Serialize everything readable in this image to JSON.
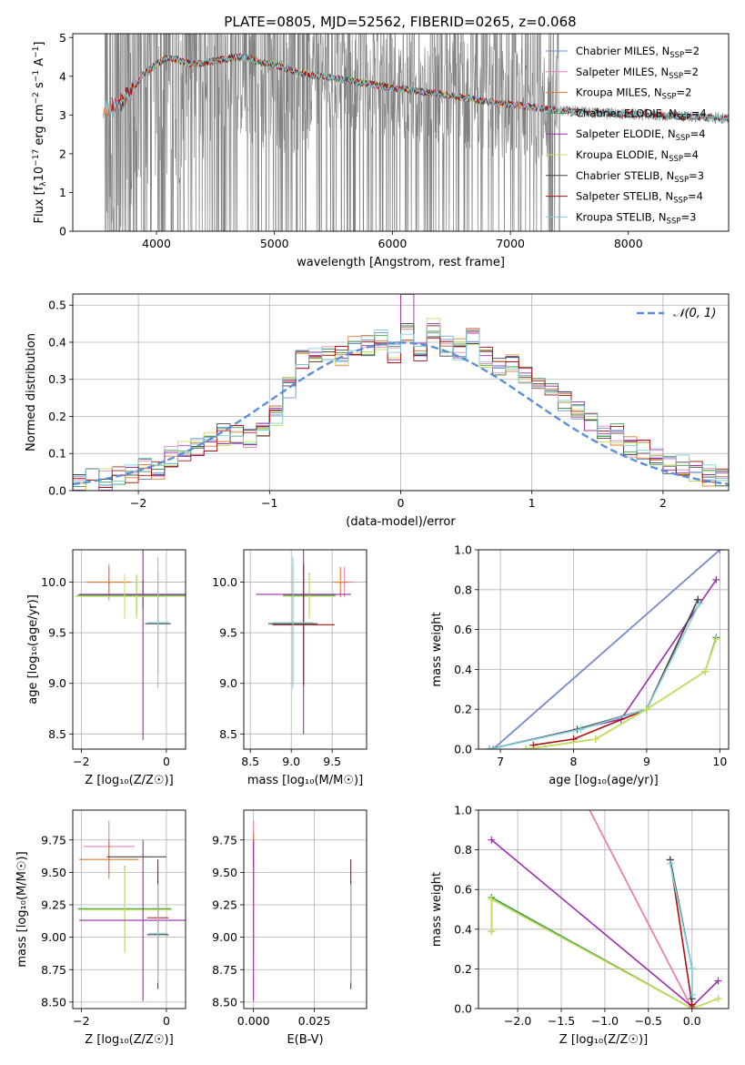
{
  "figure_title": "PLATE=0805, MJD=52562, FIBERID=0265, z=0.068",
  "colors": {
    "chabrier_miles": "#6a8fd6",
    "salpeter_miles": "#e97fb8",
    "kroupa_miles": "#e07a2e",
    "chabrier_elodie": "#3e9b4a",
    "salpeter_elodie": "#9b2fae",
    "kroupa_elodie": "#c8e05a",
    "chabrier_stelib": "#444444",
    "salpeter_stelib": "#b01010",
    "kroupa_stelib": "#7fd0d8",
    "data_gray": "#808080",
    "gaussian": "#5b8fd9"
  },
  "chart_data": [
    {
      "id": "spectrum",
      "type": "line",
      "title": "PLATE=0805, MJD=52562, FIBERID=0265, z=0.068",
      "xlabel": "wavelength [Angstrom, rest frame]",
      "ylabel": "Flux [f_λ 10^-17 erg cm^-2 s^-1 A^-1]",
      "xlim": [
        3290,
        8850
      ],
      "ylim": [
        0,
        5.1
      ],
      "xticks": [
        4000,
        5000,
        6000,
        7000,
        8000
      ],
      "yticks": [
        0,
        1,
        2,
        3,
        4,
        5
      ],
      "legend_position": "right",
      "legend": [
        {
          "label": "Chabrier MILES, N",
          "sub": "SSP",
          "suffix": "=2",
          "color_key": "chabrier_miles"
        },
        {
          "label": "Salpeter MILES, N",
          "sub": "SSP",
          "suffix": "=2",
          "color_key": "salpeter_miles"
        },
        {
          "label": "Kroupa MILES, N",
          "sub": "SSP",
          "suffix": "=2",
          "color_key": "kroupa_miles"
        },
        {
          "label": "Chabrier ELODIE, N",
          "sub": "SSP",
          "suffix": "=4",
          "color_key": "chabrier_elodie"
        },
        {
          "label": "Salpeter ELODIE, N",
          "sub": "SSP",
          "suffix": "=4",
          "color_key": "salpeter_elodie"
        },
        {
          "label": "Kroupa ELODIE, N",
          "sub": "SSP",
          "suffix": "=4",
          "color_key": "kroupa_elodie"
        },
        {
          "label": "Chabrier STELIB, N",
          "sub": "SSP",
          "suffix": "=3",
          "color_key": "chabrier_stelib"
        },
        {
          "label": "Salpeter STELIB, N",
          "sub": "SSP",
          "suffix": "=4",
          "color_key": "salpeter_stelib"
        },
        {
          "label": "Kroupa STELIB, N",
          "sub": "SSP",
          "suffix": "=3",
          "color_key": "kroupa_stelib"
        }
      ],
      "model_continuum": {
        "x": [
          3550,
          3620,
          3700,
          3800,
          3900,
          4000,
          4100,
          4200,
          4300,
          4400,
          4500,
          4600,
          4700,
          4800,
          4900,
          5000,
          5100,
          5200,
          5400,
          5600,
          5800,
          6000,
          6200,
          6400,
          6600,
          6800,
          7000,
          7200,
          7400,
          7600,
          7800,
          8000,
          8200,
          8400,
          8600,
          8800
        ],
        "y": [
          3.1,
          3.2,
          3.3,
          3.7,
          4.1,
          4.3,
          4.5,
          4.4,
          4.3,
          4.35,
          4.4,
          4.45,
          4.5,
          4.45,
          4.35,
          4.3,
          4.2,
          4.1,
          4.0,
          3.9,
          3.8,
          3.7,
          3.62,
          3.55,
          3.45,
          3.35,
          3.28,
          3.2,
          3.12,
          3.08,
          3.05,
          3.02,
          3.0,
          2.97,
          2.95,
          2.92
        ]
      },
      "data_noisy_range": [
        3550,
        7420
      ]
    },
    {
      "id": "residuals",
      "type": "step",
      "xlabel": "(data-model)/error",
      "ylabel": "Normed distribution",
      "xlim": [
        -2.5,
        2.5
      ],
      "ylim": [
        0,
        0.53
      ],
      "xticks": [
        -2,
        -1,
        0,
        1,
        2
      ],
      "yticks": [
        0.0,
        0.1,
        0.2,
        0.3,
        0.4,
        0.5
      ],
      "gaussian_label": "𝒩(0, 1)",
      "bin_edges": [
        -2.5,
        -2.4,
        -2.3,
        -2.2,
        -2.1,
        -2.0,
        -1.9,
        -1.8,
        -1.7,
        -1.6,
        -1.5,
        -1.4,
        -1.3,
        -1.2,
        -1.1,
        -1.0,
        -0.9,
        -0.8,
        -0.7,
        -0.6,
        -0.5,
        -0.4,
        -0.3,
        -0.2,
        -0.1,
        0.0,
        0.1,
        0.2,
        0.3,
        0.4,
        0.5,
        0.6,
        0.7,
        0.8,
        0.9,
        1.0,
        1.1,
        1.2,
        1.3,
        1.4,
        1.5,
        1.6,
        1.7,
        1.8,
        1.9,
        2.0,
        2.1,
        2.2,
        2.3,
        2.4,
        2.5
      ],
      "histogram": [
        0.02,
        0.03,
        0.03,
        0.04,
        0.05,
        0.06,
        0.06,
        0.09,
        0.11,
        0.11,
        0.13,
        0.15,
        0.15,
        0.14,
        0.17,
        0.2,
        0.28,
        0.35,
        0.37,
        0.37,
        0.36,
        0.39,
        0.39,
        0.41,
        0.37,
        0.43,
        0.37,
        0.44,
        0.39,
        0.38,
        0.42,
        0.36,
        0.34,
        0.34,
        0.31,
        0.28,
        0.28,
        0.24,
        0.22,
        0.18,
        0.15,
        0.15,
        0.12,
        0.11,
        0.09,
        0.07,
        0.07,
        0.05,
        0.04,
        0.03
      ]
    },
    {
      "id": "age_vs_z",
      "type": "scatter",
      "xlabel": "Z [log₁₀(Z/Z☉)]",
      "ylabel": "age  [log₁₀(age/yr)]",
      "xlim": [
        -2.2,
        0.45
      ],
      "ylim": [
        8.35,
        10.32
      ],
      "xticks": [
        -2,
        0
      ],
      "yticks": [
        8.5,
        9.0,
        9.5,
        10.0
      ],
      "points": [
        {
          "x": -1.35,
          "y": 10.0,
          "xerr": 0.55,
          "yerr": 0.18,
          "c": "salpeter_miles"
        },
        {
          "x": -1.35,
          "y": 10.0,
          "xerr": 0.5,
          "yerr": 0.15,
          "c": "kroupa_miles"
        },
        {
          "x": -0.7,
          "y": 9.87,
          "xerr": 1.4,
          "yerr": 0.2,
          "c": "chabrier_elodie"
        },
        {
          "x": -0.7,
          "y": 9.86,
          "xerr": 1.45,
          "yerr": 0.22,
          "c": "kroupa_elodie"
        },
        {
          "x": -0.55,
          "y": 9.88,
          "xerr": 1.5,
          "yerr": 0.15,
          "c": "salpeter_elodie"
        },
        {
          "x": -0.55,
          "y": 9.82,
          "xerr": 0.0,
          "yerr": 1.38,
          "c": "salpeter_elodie"
        },
        {
          "x": -0.2,
          "y": 9.59,
          "xerr": 0.3,
          "yerr": 0.5,
          "c": "chabrier_stelib"
        },
        {
          "x": -0.2,
          "y": 9.6,
          "xerr": 0.25,
          "yerr": 0.65,
          "c": "kroupa_stelib"
        },
        {
          "x": -0.98,
          "y": 9.86,
          "xerr": 1.0,
          "yerr": 0.22,
          "c": "kroupa_elodie"
        }
      ]
    },
    {
      "id": "age_vs_mass",
      "type": "scatter",
      "xlabel": "mass [log₁₀(M/M☉)]",
      "ylabel": "",
      "xlim": [
        8.42,
        9.92
      ],
      "ylim": [
        8.35,
        10.32
      ],
      "xticks": [
        8.5,
        9.0,
        9.5
      ],
      "yticks": [
        8.5,
        9.0,
        9.5,
        10.0
      ],
      "points": [
        {
          "x": 9.65,
          "y": 10.0,
          "xerr": 0.12,
          "yerr": 0.15,
          "c": "salpeter_miles"
        },
        {
          "x": 9.6,
          "y": 10.0,
          "xerr": 0.1,
          "yerr": 0.15,
          "c": "kroupa_miles"
        },
        {
          "x": 9.22,
          "y": 9.87,
          "xerr": 0.32,
          "yerr": 0.22,
          "c": "chabrier_elodie"
        },
        {
          "x": 9.22,
          "y": 9.86,
          "xerr": 0.32,
          "yerr": 0.22,
          "c": "kroupa_elodie"
        },
        {
          "x": 9.15,
          "y": 9.88,
          "xerr": 0.58,
          "yerr": 1.38,
          "c": "salpeter_elodie"
        },
        {
          "x": 9.15,
          "y": 9.58,
          "xerr": 0.38,
          "yerr": 0.6,
          "c": "salpeter_stelib"
        },
        {
          "x": 9.02,
          "y": 9.59,
          "xerr": 0.3,
          "yerr": 0.58,
          "c": "chabrier_stelib"
        },
        {
          "x": 9.02,
          "y": 9.6,
          "xerr": 0.25,
          "yerr": 0.65,
          "c": "kroupa_stelib"
        }
      ]
    },
    {
      "id": "mass_weight_vs_age",
      "type": "line",
      "xlabel": "age  [log₁₀(age/yr)]",
      "ylabel": "mass weight",
      "xlim": [
        6.7,
        10.12
      ],
      "ylim": [
        0,
        1.0
      ],
      "xticks": [
        7,
        8,
        9,
        10
      ],
      "yticks": [
        0.0,
        0.2,
        0.4,
        0.6,
        0.8,
        1.0
      ],
      "series": [
        {
          "c": "kroupa_miles",
          "x": [
            6.9,
            10.0
          ],
          "y": [
            0.0,
            1.0
          ]
        },
        {
          "c": "salpeter_miles",
          "x": [
            6.9,
            10.0
          ],
          "y": [
            0.0,
            1.0
          ]
        },
        {
          "c": "chabrier_miles",
          "x": [
            6.9,
            10.0
          ],
          "y": [
            0.0,
            1.0
          ]
        },
        {
          "c": "salpeter_elodie",
          "x": [
            6.85,
            8.65,
            9.95
          ],
          "y": [
            0.0,
            0.15,
            0.85
          ]
        },
        {
          "c": "salpeter_stelib",
          "x": [
            7.45,
            8.0,
            9.0,
            9.7
          ],
          "y": [
            0.02,
            0.05,
            0.2,
            0.75
          ]
        },
        {
          "c": "chabrier_stelib",
          "x": [
            6.85,
            8.05,
            9.0,
            9.7
          ],
          "y": [
            0.0,
            0.1,
            0.2,
            0.75
          ]
        },
        {
          "c": "kroupa_stelib",
          "x": [
            6.85,
            8.1,
            9.0,
            9.72
          ],
          "y": [
            0.0,
            0.1,
            0.2,
            0.73
          ]
        },
        {
          "c": "chabrier_elodie",
          "x": [
            7.35,
            8.3,
            9.0,
            9.8,
            9.95
          ],
          "y": [
            0.0,
            0.05,
            0.2,
            0.39,
            0.56
          ]
        },
        {
          "c": "kroupa_elodie",
          "x": [
            7.35,
            8.3,
            9.0,
            9.8,
            9.95
          ],
          "y": [
            0.0,
            0.05,
            0.2,
            0.39,
            0.55
          ]
        }
      ]
    },
    {
      "id": "mass_vs_z",
      "type": "scatter",
      "xlabel": "Z [log₁₀(Z/Z☉)]",
      "ylabel": "mass [log₁₀(M/M☉)]",
      "xlim": [
        -2.2,
        0.45
      ],
      "ylim": [
        8.45,
        9.98
      ],
      "xticks": [
        -2,
        0
      ],
      "yticks": [
        8.5,
        8.75,
        9.0,
        9.25,
        9.5,
        9.75
      ],
      "points": [
        {
          "x": -1.35,
          "y": 9.7,
          "xerr": 0.6,
          "yerr": 0.2,
          "c": "salpeter_miles"
        },
        {
          "x": -1.35,
          "y": 9.6,
          "xerr": 0.7,
          "yerr": 0.15,
          "c": "kroupa_miles"
        },
        {
          "x": -0.7,
          "y": 9.62,
          "xerr": 0.7,
          "yerr": 0.0,
          "c": "chabrier_stelib"
        },
        {
          "x": -0.2,
          "y": 9.6,
          "xerr": 0.0,
          "yerr": 0.0,
          "c": "salpeter_stelib"
        },
        {
          "x": -0.98,
          "y": 9.22,
          "xerr": 1.1,
          "yerr": 0.33,
          "c": "chabrier_elodie"
        },
        {
          "x": -0.98,
          "y": 9.21,
          "xerr": 1.1,
          "yerr": 0.33,
          "c": "kroupa_elodie"
        },
        {
          "x": -0.55,
          "y": 9.13,
          "xerr": 1.5,
          "yerr": 0.62,
          "c": "salpeter_elodie"
        },
        {
          "x": -0.2,
          "y": 9.15,
          "xerr": 0.25,
          "yerr": 0.45,
          "c": "salpeter_stelib"
        },
        {
          "x": -0.2,
          "y": 9.02,
          "xerr": 0.25,
          "yerr": 0.42,
          "c": "chabrier_stelib"
        },
        {
          "x": -0.2,
          "y": 9.03,
          "xerr": 0.22,
          "yerr": 0.38,
          "c": "kroupa_stelib"
        }
      ]
    },
    {
      "id": "mass_vs_ebv",
      "type": "scatter",
      "xlabel": "E(B-V)",
      "ylabel": "",
      "xlim": [
        -0.004,
        0.0465
      ],
      "ylim": [
        8.45,
        9.98
      ],
      "xticks": [
        0.0,
        0.025
      ],
      "yticks": [
        8.5,
        8.75,
        9.0,
        9.25,
        9.5,
        9.75
      ],
      "points": [
        {
          "x": 0.0,
          "y": 9.7,
          "xerr": 0.0,
          "yerr": 0.2,
          "c": "salpeter_miles"
        },
        {
          "x": 0.0,
          "y": 9.6,
          "xerr": 0.0,
          "yerr": 0.2,
          "c": "kroupa_miles"
        },
        {
          "x": 0.0,
          "y": 9.22,
          "xerr": 0.0,
          "yerr": 0.33,
          "c": "chabrier_elodie"
        },
        {
          "x": 0.0,
          "y": 9.21,
          "xerr": 0.0,
          "yerr": 0.33,
          "c": "kroupa_elodie"
        },
        {
          "x": 0.0,
          "y": 9.13,
          "xerr": 0.0,
          "yerr": 0.62,
          "c": "salpeter_elodie"
        },
        {
          "x": 0.04,
          "y": 9.15,
          "xerr": 0.0,
          "yerr": 0.45,
          "c": "salpeter_stelib"
        },
        {
          "x": 0.04,
          "y": 9.02,
          "xerr": 0.0,
          "yerr": 0.42,
          "c": "chabrier_stelib"
        },
        {
          "x": 0.04,
          "y": 9.03,
          "xerr": 0.0,
          "yerr": 0.38,
          "c": "kroupa_stelib"
        }
      ]
    },
    {
      "id": "mass_weight_vs_z",
      "type": "line",
      "xlabel": "Z [log₁₀(Z/Z☉)]",
      "ylabel": "mass weight",
      "xlim": [
        -2.45,
        0.42
      ],
      "ylim": [
        0,
        1.0
      ],
      "xticks": [
        -2.0,
        -1.5,
        -1.0,
        -0.5,
        0.0
      ],
      "yticks": [
        0.0,
        0.2,
        0.4,
        0.6,
        0.8,
        1.0
      ],
      "series": [
        {
          "c": "kroupa_miles",
          "x": [
            -1.35,
            0.0
          ],
          "y": [
            1.15,
            0.0
          ]
        },
        {
          "c": "salpeter_miles",
          "x": [
            -1.35,
            0.0
          ],
          "y": [
            1.15,
            0.0
          ]
        },
        {
          "c": "salpeter_elodie",
          "x": [
            -2.3,
            0.0,
            0.3
          ],
          "y": [
            0.85,
            0.01,
            0.14
          ]
        },
        {
          "c": "chabrier_elodie",
          "x": [
            -2.3,
            -2.3,
            0.0,
            0.3
          ],
          "y": [
            0.39,
            0.56,
            0.0,
            0.05
          ]
        },
        {
          "c": "kroupa_elodie",
          "x": [
            -2.3,
            -2.3,
            0.0,
            0.3
          ],
          "y": [
            0.39,
            0.55,
            0.0,
            0.05
          ]
        },
        {
          "c": "salpeter_stelib",
          "x": [
            -0.25,
            0.0
          ],
          "y": [
            0.75,
            0.02
          ]
        },
        {
          "c": "chabrier_stelib",
          "x": [
            -0.25,
            0.0,
            0.0
          ],
          "y": [
            0.75,
            0.2,
            0.05
          ]
        },
        {
          "c": "kroupa_stelib",
          "x": [
            -0.25,
            0.0,
            0.0
          ],
          "y": [
            0.73,
            0.2,
            0.07
          ]
        }
      ]
    }
  ]
}
